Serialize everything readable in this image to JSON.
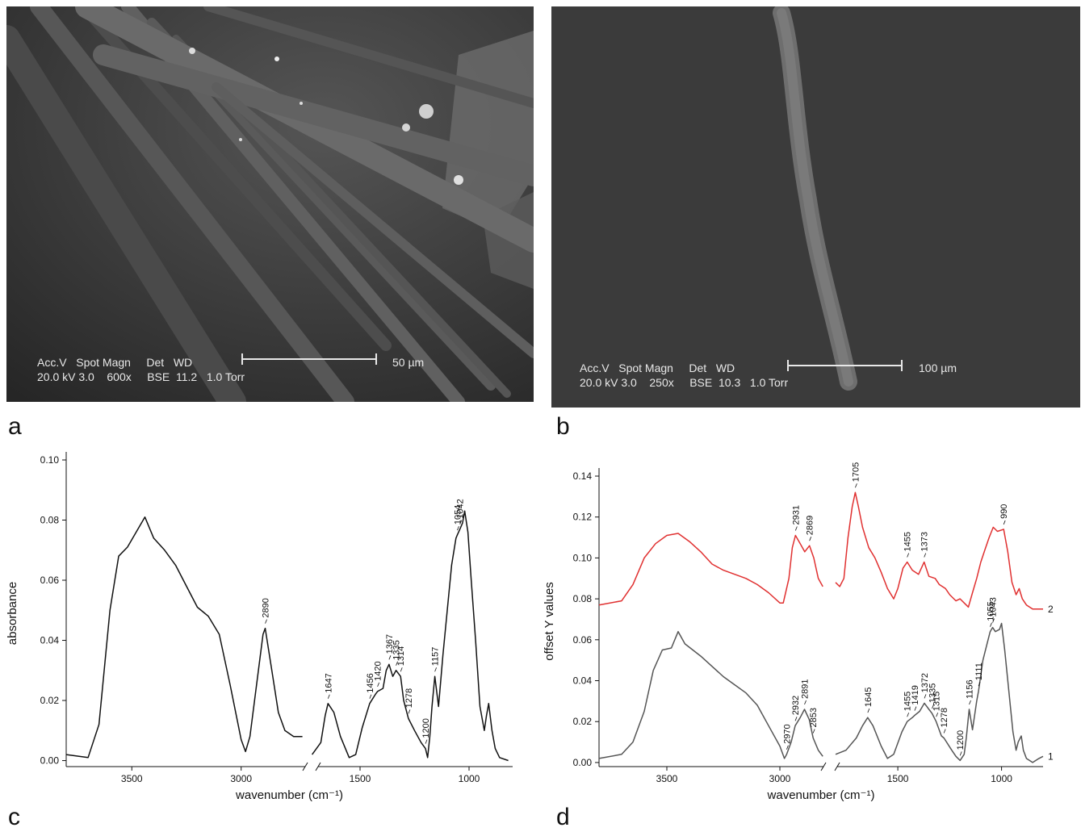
{
  "panels": {
    "a": {
      "letter": "a",
      "meta_line1": "Acc.V   Spot Magn     Det   WD",
      "meta_line2": "20.0 kV 3.0    600x     BSE  11.2   1.0 Torr",
      "scale_label": "50 µm"
    },
    "b": {
      "letter": "b",
      "meta_line1": "Acc.V   Spot Magn     Det   WD",
      "meta_line2": "20.0 kV 3.0    250x     BSE  10.3   1.0 Torr",
      "scale_label": "100 µm"
    },
    "c": {
      "letter": "c"
    },
    "d": {
      "letter": "d"
    }
  },
  "chart_data": [
    {
      "panel": "c",
      "type": "line",
      "title": "",
      "xlabel": "wavenumber (cm⁻¹)",
      "ylabel": "absorbance",
      "x_reversed": true,
      "x_break": [
        2700,
        1700
      ],
      "xlim_left": [
        3800,
        2700
      ],
      "xlim_right": [
        1700,
        800
      ],
      "ylim": [
        -0.002,
        0.1
      ],
      "x_ticks": [
        3500,
        3000,
        1500,
        1000
      ],
      "y_ticks": [
        "0.00",
        "0.02",
        "0.04",
        "0.06",
        "0.08",
        "0.10"
      ],
      "y_tick_values": [
        0,
        0.02,
        0.04,
        0.06,
        0.08,
        0.1
      ],
      "series": [
        {
          "color": "#111111",
          "segments": [
            [
              [
                3800,
                0.002
              ],
              [
                3700,
                0.001
              ],
              [
                3650,
                0.012
              ],
              [
                3600,
                0.05
              ],
              [
                3560,
                0.068
              ],
              [
                3520,
                0.071
              ],
              [
                3480,
                0.076
              ],
              [
                3440,
                0.081
              ],
              [
                3400,
                0.074
              ],
              [
                3350,
                0.07
              ],
              [
                3300,
                0.065
              ],
              [
                3250,
                0.058
              ],
              [
                3200,
                0.051
              ],
              [
                3150,
                0.048
              ],
              [
                3100,
                0.042
              ],
              [
                3050,
                0.025
              ],
              [
                3000,
                0.007
              ],
              [
                2980,
                0.003
              ],
              [
                2960,
                0.008
              ],
              [
                2930,
                0.025
              ],
              [
                2900,
                0.042
              ],
              [
                2890,
                0.044
              ],
              [
                2860,
                0.03
              ],
              [
                2830,
                0.016
              ],
              [
                2800,
                0.01
              ],
              [
                2760,
                0.008
              ],
              [
                2720,
                0.008
              ]
            ],
            [
              [
                1720,
                0.002
              ],
              [
                1680,
                0.006
              ],
              [
                1660,
                0.015
              ],
              [
                1647,
                0.019
              ],
              [
                1620,
                0.016
              ],
              [
                1590,
                0.008
              ],
              [
                1550,
                0.001
              ],
              [
                1520,
                0.002
              ],
              [
                1490,
                0.011
              ],
              [
                1456,
                0.019
              ],
              [
                1430,
                0.022
              ],
              [
                1420,
                0.023
              ],
              [
                1395,
                0.024
              ],
              [
                1380,
                0.03
              ],
              [
                1367,
                0.032
              ],
              [
                1350,
                0.028
              ],
              [
                1335,
                0.03
              ],
              [
                1314,
                0.028
              ],
              [
                1300,
                0.02
              ],
              [
                1278,
                0.014
              ],
              [
                1250,
                0.01
              ],
              [
                1220,
                0.006
              ],
              [
                1200,
                0.004
              ],
              [
                1190,
                0.001
              ],
              [
                1180,
                0.008
              ],
              [
                1170,
                0.018
              ],
              [
                1157,
                0.028
              ],
              [
                1140,
                0.018
              ],
              [
                1120,
                0.035
              ],
              [
                1100,
                0.05
              ],
              [
                1080,
                0.065
              ],
              [
                1060,
                0.074
              ],
              [
                1054,
                0.075
              ],
              [
                1042,
                0.077
              ],
              [
                1030,
                0.079
              ],
              [
                1020,
                0.083
              ],
              [
                1005,
                0.076
              ],
              [
                990,
                0.06
              ],
              [
                970,
                0.04
              ],
              [
                950,
                0.018
              ],
              [
                930,
                0.01
              ],
              [
                920,
                0.015
              ],
              [
                910,
                0.019
              ],
              [
                895,
                0.01
              ],
              [
                880,
                0.004
              ],
              [
                860,
                0.001
              ],
              [
                820,
                0.0
              ]
            ]
          ]
        }
      ],
      "annotations": [
        "2890",
        "1647",
        "1456",
        "1420",
        "1367",
        "1335",
        "1314",
        "1278",
        "1200",
        "1157",
        "1054",
        "1042"
      ]
    },
    {
      "panel": "d",
      "type": "line",
      "title": "",
      "xlabel": "wavenumber (cm⁻¹)",
      "ylabel": "offset Y values",
      "x_reversed": true,
      "x_break": [
        2800,
        1800
      ],
      "xlim_left": [
        3800,
        2800
      ],
      "xlim_right": [
        1800,
        800
      ],
      "ylim": [
        -0.002,
        0.14
      ],
      "x_ticks": [
        3500,
        3000,
        1500,
        1000
      ],
      "y_ticks": [
        "0.00",
        "0.02",
        "0.04",
        "0.06",
        "0.08",
        "0.10",
        "0.12",
        "0.14"
      ],
      "y_tick_values": [
        0,
        0.02,
        0.04,
        0.06,
        0.08,
        0.1,
        0.12,
        0.14
      ],
      "series": [
        {
          "name": "1",
          "color": "#555555",
          "segments": [
            [
              [
                3800,
                0.002
              ],
              [
                3700,
                0.004
              ],
              [
                3650,
                0.01
              ],
              [
                3600,
                0.025
              ],
              [
                3560,
                0.045
              ],
              [
                3520,
                0.055
              ],
              [
                3480,
                0.056
              ],
              [
                3450,
                0.064
              ],
              [
                3420,
                0.058
              ],
              [
                3350,
                0.052
              ],
              [
                3300,
                0.047
              ],
              [
                3250,
                0.042
              ],
              [
                3200,
                0.038
              ],
              [
                3150,
                0.034
              ],
              [
                3100,
                0.028
              ],
              [
                3050,
                0.018
              ],
              [
                3000,
                0.008
              ],
              [
                2980,
                0.002
              ],
              [
                2970,
                0.004
              ],
              [
                2950,
                0.01
              ],
              [
                2932,
                0.018
              ],
              [
                2910,
                0.022
              ],
              [
                2891,
                0.026
              ],
              [
                2870,
                0.021
              ],
              [
                2853,
                0.012
              ],
              [
                2830,
                0.006
              ],
              [
                2810,
                0.003
              ]
            ],
            [
              [
                1800,
                0.004
              ],
              [
                1750,
                0.006
              ],
              [
                1700,
                0.012
              ],
              [
                1670,
                0.018
              ],
              [
                1645,
                0.022
              ],
              [
                1620,
                0.018
              ],
              [
                1580,
                0.008
              ],
              [
                1550,
                0.002
              ],
              [
                1520,
                0.004
              ],
              [
                1480,
                0.015
              ],
              [
                1455,
                0.02
              ],
              [
                1430,
                0.022
              ],
              [
                1419,
                0.023
              ],
              [
                1395,
                0.025
              ],
              [
                1372,
                0.029
              ],
              [
                1350,
                0.026
              ],
              [
                1335,
                0.024
              ],
              [
                1315,
                0.02
              ],
              [
                1290,
                0.013
              ],
              [
                1278,
                0.012
              ],
              [
                1240,
                0.006
              ],
              [
                1220,
                0.003
              ],
              [
                1200,
                0.001
              ],
              [
                1180,
                0.004
              ],
              [
                1170,
                0.012
              ],
              [
                1156,
                0.026
              ],
              [
                1140,
                0.016
              ],
              [
                1120,
                0.03
              ],
              [
                1111,
                0.035
              ],
              [
                1090,
                0.05
              ],
              [
                1070,
                0.058
              ],
              [
                1055,
                0.064
              ],
              [
                1043,
                0.066
              ],
              [
                1030,
                0.064
              ],
              [
                1010,
                0.065
              ],
              [
                1000,
                0.068
              ],
              [
                985,
                0.055
              ],
              [
                965,
                0.035
              ],
              [
                945,
                0.015
              ],
              [
                930,
                0.006
              ],
              [
                920,
                0.01
              ],
              [
                905,
                0.013
              ],
              [
                895,
                0.006
              ],
              [
                880,
                0.002
              ],
              [
                850,
                0.0
              ],
              [
                820,
                0.002
              ],
              [
                800,
                0.003
              ]
            ]
          ]
        },
        {
          "name": "2",
          "color": "#e03030",
          "segments": [
            [
              [
                3800,
                0.077
              ],
              [
                3700,
                0.079
              ],
              [
                3650,
                0.087
              ],
              [
                3600,
                0.1
              ],
              [
                3550,
                0.107
              ],
              [
                3500,
                0.111
              ],
              [
                3450,
                0.112
              ],
              [
                3400,
                0.108
              ],
              [
                3350,
                0.103
              ],
              [
                3300,
                0.097
              ],
              [
                3250,
                0.094
              ],
              [
                3200,
                0.092
              ],
              [
                3150,
                0.09
              ],
              [
                3100,
                0.087
              ],
              [
                3050,
                0.083
              ],
              [
                3000,
                0.078
              ],
              [
                2985,
                0.078
              ],
              [
                2960,
                0.09
              ],
              [
                2945,
                0.105
              ],
              [
                2931,
                0.111
              ],
              [
                2910,
                0.107
              ],
              [
                2890,
                0.103
              ],
              [
                2869,
                0.106
              ],
              [
                2850,
                0.1
              ],
              [
                2830,
                0.09
              ],
              [
                2810,
                0.086
              ]
            ],
            [
              [
                1800,
                0.088
              ],
              [
                1780,
                0.086
              ],
              [
                1760,
                0.09
              ],
              [
                1740,
                0.11
              ],
              [
                1720,
                0.125
              ],
              [
                1705,
                0.132
              ],
              [
                1690,
                0.125
              ],
              [
                1670,
                0.115
              ],
              [
                1640,
                0.105
              ],
              [
                1610,
                0.1
              ],
              [
                1580,
                0.093
              ],
              [
                1550,
                0.085
              ],
              [
                1520,
                0.08
              ],
              [
                1500,
                0.085
              ],
              [
                1475,
                0.095
              ],
              [
                1455,
                0.098
              ],
              [
                1430,
                0.094
              ],
              [
                1400,
                0.092
              ],
              [
                1373,
                0.098
              ],
              [
                1350,
                0.091
              ],
              [
                1320,
                0.09
              ],
              [
                1300,
                0.087
              ],
              [
                1270,
                0.085
              ],
              [
                1250,
                0.082
              ],
              [
                1220,
                0.079
              ],
              [
                1200,
                0.08
              ],
              [
                1180,
                0.078
              ],
              [
                1160,
                0.076
              ],
              [
                1140,
                0.083
              ],
              [
                1120,
                0.09
              ],
              [
                1100,
                0.098
              ],
              [
                1080,
                0.104
              ],
              [
                1060,
                0.11
              ],
              [
                1040,
                0.115
              ],
              [
                1020,
                0.113
              ],
              [
                990,
                0.114
              ],
              [
                970,
                0.103
              ],
              [
                950,
                0.088
              ],
              [
                930,
                0.082
              ],
              [
                915,
                0.085
              ],
              [
                900,
                0.08
              ],
              [
                880,
                0.077
              ],
              [
                850,
                0.075
              ],
              [
                820,
                0.075
              ],
              [
                800,
                0.075
              ]
            ]
          ]
        }
      ],
      "annotations": [
        "1705",
        "2931",
        "2869",
        "1455",
        "1373",
        "990",
        "2970",
        "2932",
        "2891",
        "2853",
        "1645",
        "1455",
        "1419",
        "1372",
        "1335",
        "1315",
        "1278",
        "1200",
        "1156",
        "1111",
        "1055",
        "1043"
      ]
    }
  ]
}
